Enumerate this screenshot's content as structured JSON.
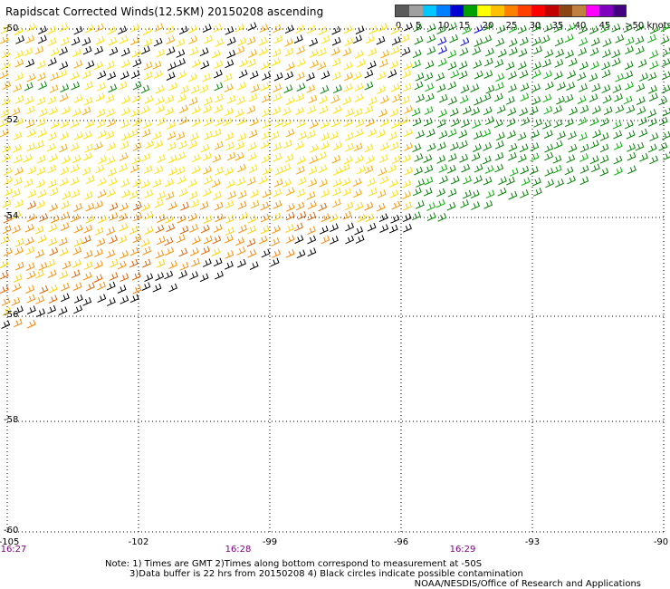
{
  "title": "Rapidscat Corrected Winds(12.5KM) 20150208 ascending",
  "legend": {
    "colors": [
      "#5a5a5a",
      "#a0a0a0",
      "#00c8ff",
      "#0080ff",
      "#0000d0",
      "#00a000",
      "#ffff00",
      "#ffc000",
      "#ff8000",
      "#ff4000",
      "#ff0000",
      "#c00000",
      "#8b4513",
      "#c08040",
      "#ff00ff",
      "#8000c0",
      "#400080"
    ],
    "labels": [
      "0",
      "5",
      "10",
      "15",
      "20",
      "25",
      "30",
      "35",
      "40",
      "45",
      ">50 knots"
    ]
  },
  "axes": {
    "lat_labels": [
      "-50",
      "-52",
      "-54",
      "-56",
      "-58",
      "-60"
    ],
    "lon_labels": [
      "-105",
      "-102",
      "-99",
      "-96",
      "-93",
      "-90"
    ]
  },
  "times": [
    "16:27",
    "16:28",
    "16:29"
  ],
  "notes": {
    "line1": "Note: 1) Times are GMT 2)Times along bottom correspond to measurement at -50S",
    "line2": "3)Data buffer is 22 hrs from 20150208 4) Black circles indicate possible contamination"
  },
  "credit": "NOAA/NESDIS/Office of Research and Applications"
}
